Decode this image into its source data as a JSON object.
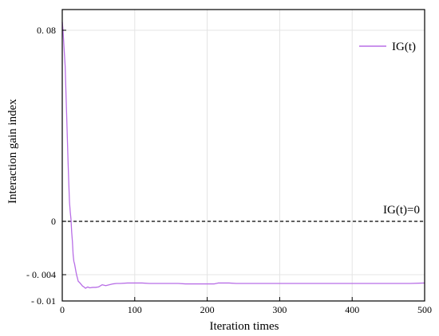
{
  "chart_data": {
    "type": "line",
    "title": "",
    "xlabel": "Iteration times",
    "ylabel": "Interaction gain index",
    "xlim": [
      0,
      500
    ],
    "ylim": [
      -0.01,
      0.085
    ],
    "x_ticks": [
      0,
      100,
      200,
      300,
      400,
      500
    ],
    "x_tick_labels": [
      "0",
      "100",
      "200",
      "300",
      "400",
      "500"
    ],
    "y_ticks": [
      0.08,
      0,
      -0.004,
      -0.01
    ],
    "y_tick_labels": [
      "0. 08",
      "0",
      "- 0. 004",
      "- 0. 01"
    ],
    "grid": true,
    "legend": {
      "position": "top-right",
      "entries": [
        "IG(t)"
      ]
    },
    "series": [
      {
        "name": "IG(t)",
        "color": "#b86ee6",
        "x": [
          0,
          1,
          2,
          3,
          4,
          5,
          6,
          7,
          8,
          9,
          10,
          11,
          12,
          13,
          14,
          15,
          16,
          17,
          18,
          19,
          20,
          21,
          22,
          24,
          26,
          28,
          30,
          32,
          35,
          38,
          42,
          46,
          50,
          55,
          60,
          65,
          70,
          75,
          80,
          90,
          100,
          110,
          120,
          130,
          140,
          150,
          160,
          170,
          180,
          190,
          200,
          210,
          215,
          220,
          230,
          240,
          250,
          260,
          280,
          300,
          320,
          340,
          360,
          380,
          400,
          420,
          440,
          460,
          480,
          500
        ],
        "y": [
          0.082,
          0.08,
          0.075,
          0.07,
          0.065,
          0.055,
          0.045,
          0.035,
          0.025,
          0.016,
          0.008,
          0.004,
          0.001,
          -0.0008,
          -0.0015,
          -0.0025,
          -0.003,
          -0.0032,
          -0.0035,
          -0.0038,
          -0.0042,
          -0.0048,
          -0.0055,
          -0.0058,
          -0.0062,
          -0.0066,
          -0.0068,
          -0.0071,
          -0.0068,
          -0.007,
          -0.0069,
          -0.0069,
          -0.0068,
          -0.0063,
          -0.0065,
          -0.0063,
          -0.0061,
          -0.006,
          -0.006,
          -0.0059,
          -0.0059,
          -0.0059,
          -0.006,
          -0.006,
          -0.006,
          -0.006,
          -0.006,
          -0.0061,
          -0.0061,
          -0.0061,
          -0.0061,
          -0.0061,
          -0.0059,
          -0.0059,
          -0.0059,
          -0.006,
          -0.006,
          -0.006,
          -0.006,
          -0.006,
          -0.006,
          -0.006,
          -0.006,
          -0.006,
          -0.006,
          -0.006,
          -0.006,
          -0.006,
          -0.006,
          -0.0059
        ]
      }
    ],
    "reference_line": {
      "y": 0,
      "label": "IG(t)=0",
      "style": "dashed"
    }
  }
}
